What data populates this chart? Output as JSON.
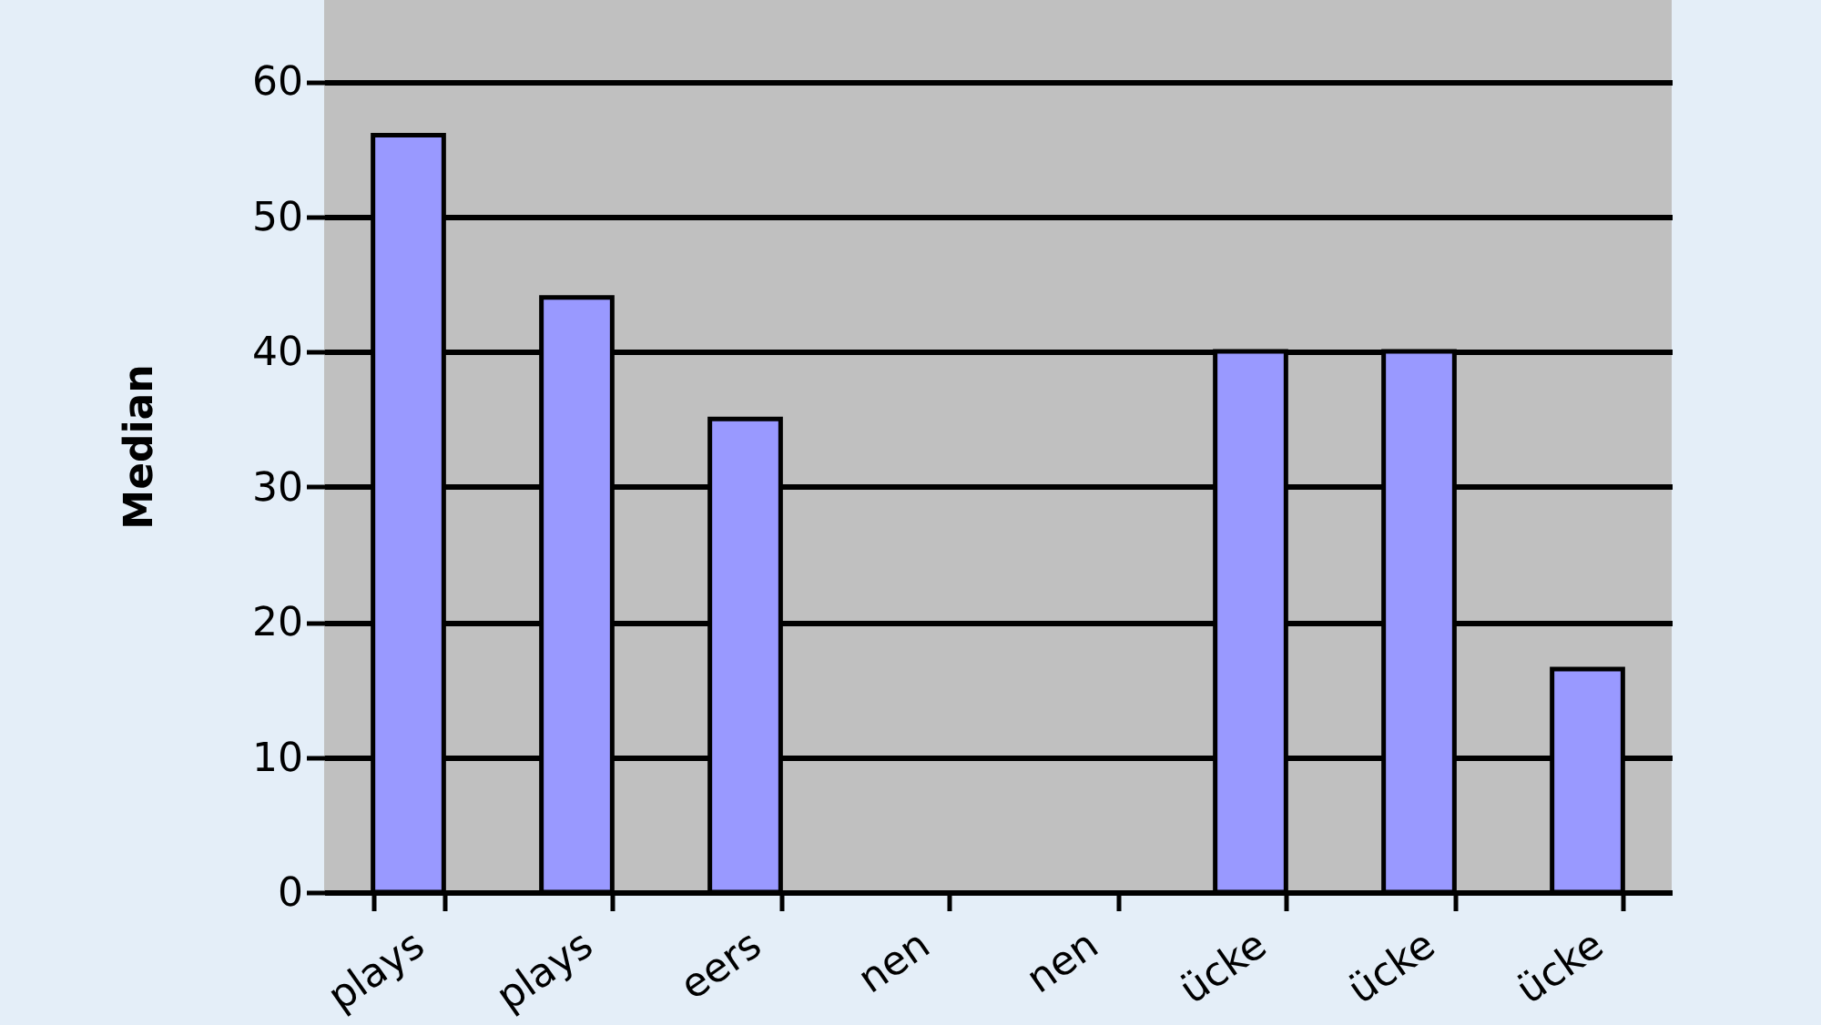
{
  "chart_data": {
    "type": "bar",
    "ylabel": "Median",
    "categories": [
      "plays",
      "plays",
      "eers",
      "nen",
      "nen",
      "ücke",
      "ücke",
      "ücke"
    ],
    "values": [
      56,
      44,
      35,
      null,
      null,
      40,
      40,
      16.5
    ],
    "color": "#9999ff",
    "ylim": [
      0,
      66
    ],
    "yticks": [
      0,
      10,
      20,
      30,
      40,
      50,
      60
    ],
    "grid": "y",
    "legend": false
  }
}
